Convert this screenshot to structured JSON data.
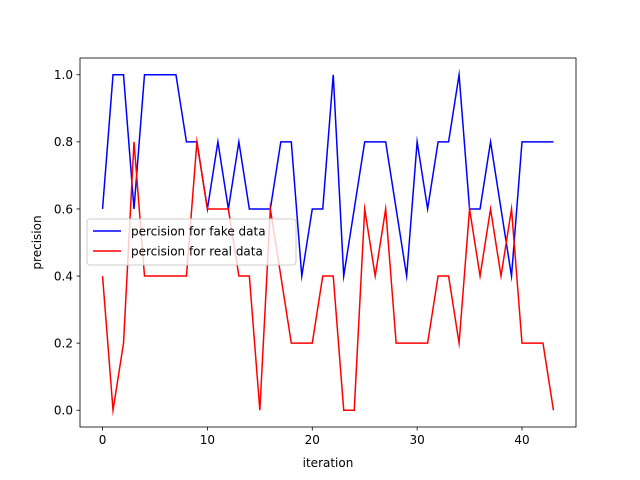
{
  "chart_data": {
    "type": "line",
    "title": "",
    "xlabel": "iteration",
    "ylabel": "precision",
    "xlim": [
      -2.15,
      45.15
    ],
    "ylim": [
      -0.05,
      1.05
    ],
    "xticks": [
      0,
      10,
      20,
      30,
      40
    ],
    "yticks": [
      0.0,
      0.2,
      0.4,
      0.6,
      0.8,
      1.0
    ],
    "xtick_labels": [
      "0",
      "10",
      "20",
      "30",
      "40"
    ],
    "ytick_labels": [
      "0.0",
      "0.2",
      "0.4",
      "0.6",
      "0.8",
      "1.0"
    ],
    "grid": false,
    "legend_position": "center-left",
    "x": [
      0,
      1,
      2,
      3,
      4,
      5,
      6,
      7,
      8,
      9,
      10,
      11,
      12,
      13,
      14,
      15,
      16,
      17,
      18,
      19,
      20,
      21,
      22,
      23,
      24,
      25,
      26,
      27,
      28,
      29,
      30,
      31,
      32,
      33,
      34,
      35,
      36,
      37,
      38,
      39,
      40,
      41,
      42,
      43
    ],
    "series": [
      {
        "name": "percision for fake data",
        "color": "#0000ff",
        "values": [
          0.6,
          1.0,
          1.0,
          0.6,
          1.0,
          1.0,
          1.0,
          1.0,
          0.8,
          0.8,
          0.6,
          0.8,
          0.6,
          0.8,
          0.6,
          0.6,
          0.6,
          0.8,
          0.8,
          0.4,
          0.6,
          0.6,
          1.0,
          0.4,
          0.6,
          0.8,
          0.8,
          0.8,
          0.6,
          0.4,
          0.8,
          0.6,
          0.8,
          0.8,
          1.0,
          0.6,
          0.6,
          0.8,
          0.6,
          0.4,
          0.8,
          0.8,
          0.8,
          0.8
        ]
      },
      {
        "name": "percision for real data",
        "color": "#ff0000",
        "values": [
          0.4,
          0.0,
          0.2,
          0.8,
          0.4,
          0.4,
          0.4,
          0.4,
          0.4,
          0.8,
          0.6,
          0.6,
          0.6,
          0.4,
          0.4,
          0.0,
          0.6,
          0.4,
          0.2,
          0.2,
          0.2,
          0.4,
          0.4,
          0.0,
          0.0,
          0.6,
          0.4,
          0.6,
          0.2,
          0.2,
          0.2,
          0.2,
          0.4,
          0.4,
          0.2,
          0.6,
          0.4,
          0.6,
          0.4,
          0.6,
          0.2,
          0.2,
          0.2,
          0.0
        ]
      }
    ]
  }
}
